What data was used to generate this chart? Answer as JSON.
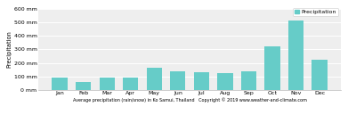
{
  "months": [
    "Jan",
    "Feb",
    "Mar",
    "Apr",
    "May",
    "Jun",
    "Jul",
    "Aug",
    "Sep",
    "Oct",
    "Nov",
    "Dec"
  ],
  "precipitation": [
    90,
    60,
    90,
    90,
    165,
    135,
    130,
    125,
    135,
    320,
    515,
    225
  ],
  "bar_color": "#66CCC8",
  "bg_color": "#ffffff",
  "plot_bg_color": "#eeeeee",
  "grid_color": "#ffffff",
  "ylabel": "Precipitation",
  "xlabel": "Average precipitation (rain/snow) in Ko Samui, Thailand   Copyright © 2019 www.weather-and-climate.com",
  "ylim": [
    0,
    600
  ],
  "yticks": [
    0,
    100,
    200,
    300,
    400,
    500,
    600
  ],
  "ytick_labels": [
    "0 mm",
    "100 mm",
    "200 mm",
    "300 mm",
    "400 mm",
    "500 mm",
    "600 mm"
  ],
  "legend_label": "Precipitation",
  "legend_color": "#66CCC8",
  "tick_fontsize": 4.5,
  "ylabel_fontsize": 4.8,
  "xlabel_fontsize": 3.5,
  "legend_fontsize": 4.5
}
